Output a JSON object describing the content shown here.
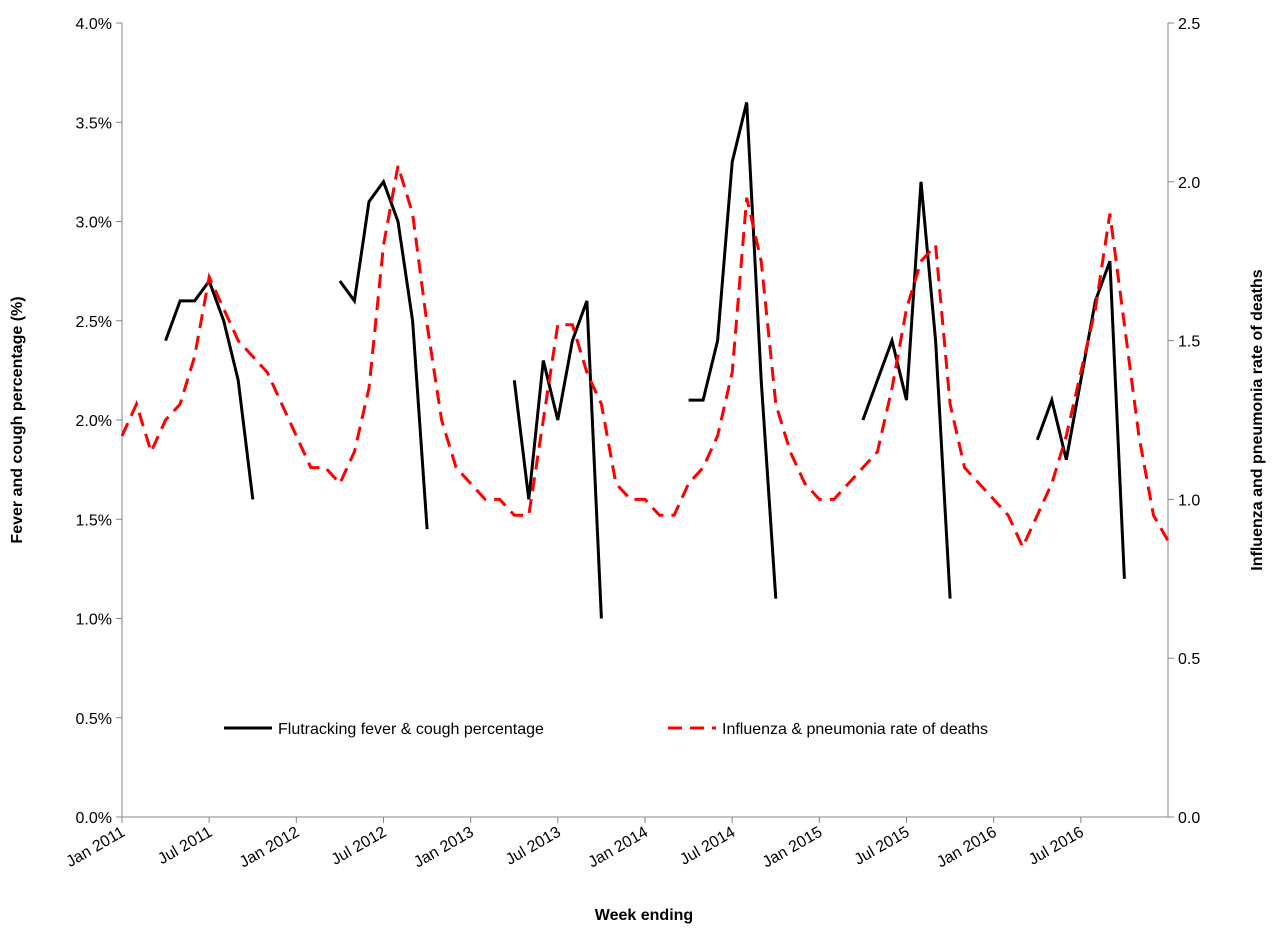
{
  "chart_data": {
    "type": "line",
    "x_label": "Week ending",
    "y_label": "Fever and cough percentage (%)",
    "y2_label": "Influenza and pneumonia rate of deaths",
    "x": [
      "2011-01",
      "2011-02",
      "2011-03",
      "2011-04",
      "2011-05",
      "2011-06",
      "2011-07",
      "2011-08",
      "2011-09",
      "2011-10",
      "2011-11",
      "2011-12",
      "2012-01",
      "2012-02",
      "2012-03",
      "2012-04",
      "2012-05",
      "2012-06",
      "2012-07",
      "2012-08",
      "2012-09",
      "2012-10",
      "2012-11",
      "2012-12",
      "2013-01",
      "2013-02",
      "2013-03",
      "2013-04",
      "2013-05",
      "2013-06",
      "2013-07",
      "2013-08",
      "2013-09",
      "2013-10",
      "2013-11",
      "2013-12",
      "2014-01",
      "2014-02",
      "2014-03",
      "2014-04",
      "2014-05",
      "2014-06",
      "2014-07",
      "2014-08",
      "2014-09",
      "2014-10",
      "2014-11",
      "2014-12",
      "2015-01",
      "2015-02",
      "2015-03",
      "2015-04",
      "2015-05",
      "2015-06",
      "2015-07",
      "2015-08",
      "2015-09",
      "2015-10",
      "2015-11",
      "2015-12",
      "2016-01",
      "2016-02",
      "2016-03",
      "2016-04",
      "2016-05",
      "2016-06",
      "2016-07",
      "2016-08",
      "2016-09",
      "2016-10",
      "2016-11",
      "2016-12",
      "2017-01"
    ],
    "xlim": [
      "2011-01",
      "2017-01"
    ],
    "xticks": [
      {
        "value": "2011-01",
        "label": "Jan 2011"
      },
      {
        "value": "2011-07",
        "label": "Jul 2011"
      },
      {
        "value": "2012-01",
        "label": "Jan 2012"
      },
      {
        "value": "2012-07",
        "label": "Jul 2012"
      },
      {
        "value": "2013-01",
        "label": "Jan 2013"
      },
      {
        "value": "2013-07",
        "label": "Jul 2013"
      },
      {
        "value": "2014-01",
        "label": "Jan 2014"
      },
      {
        "value": "2014-07",
        "label": "Jul 2014"
      },
      {
        "value": "2015-01",
        "label": "Jan 2015"
      },
      {
        "value": "2015-07",
        "label": "Jul 2015"
      },
      {
        "value": "2016-01",
        "label": "Jan 2016"
      },
      {
        "value": "2016-07",
        "label": "Jul 2016"
      }
    ],
    "ylim": [
      0,
      4
    ],
    "yticks": [
      {
        "value": 0,
        "label": "0.0%"
      },
      {
        "value": 0.5,
        "label": "0.5%"
      },
      {
        "value": 1,
        "label": "1.0%"
      },
      {
        "value": 1.5,
        "label": "1.5%"
      },
      {
        "value": 2,
        "label": "2.0%"
      },
      {
        "value": 2.5,
        "label": "2.5%"
      },
      {
        "value": 3,
        "label": "3.0%"
      },
      {
        "value": 3.5,
        "label": "3.5%"
      },
      {
        "value": 4,
        "label": "4.0%"
      }
    ],
    "y2lim": [
      0,
      2.5
    ],
    "y2ticks": [
      {
        "value": 0,
        "label": "0.0"
      },
      0.5,
      {
        "value": 1,
        "label": "1.0"
      },
      1.5,
      {
        "value": 2,
        "label": "2.0"
      },
      2.5
    ],
    "legend": "lower center",
    "series": [
      {
        "name": "Flutracking fever & cough percentage",
        "color": "#000000",
        "dash": false,
        "values": [
          null,
          null,
          null,
          2.4,
          2.6,
          2.6,
          2.7,
          2.5,
          2.2,
          1.6,
          null,
          null,
          null,
          null,
          null,
          2.7,
          2.6,
          3.1,
          3.2,
          3.0,
          2.5,
          1.45,
          null,
          null,
          null,
          null,
          null,
          2.2,
          1.6,
          2.3,
          2.0,
          2.4,
          2.6,
          1.0,
          null,
          null,
          null,
          null,
          null,
          2.1,
          2.1,
          2.4,
          3.3,
          3.6,
          2.2,
          1.1,
          null,
          null,
          null,
          null,
          null,
          2.0,
          2.2,
          2.4,
          2.1,
          3.2,
          2.4,
          1.1,
          null,
          null,
          null,
          null,
          null,
          1.9,
          2.1,
          1.8,
          2.2,
          2.6,
          2.8,
          1.2,
          null,
          null,
          null
        ]
      },
      {
        "name": "Influenza & pneumonia rate of deaths",
        "color": "#ff0000",
        "dash": true,
        "axis": "y2",
        "values": [
          1.2,
          1.3,
          1.15,
          1.25,
          1.3,
          1.45,
          1.7,
          1.6,
          1.5,
          1.45,
          1.4,
          1.3,
          1.2,
          1.1,
          1.1,
          1.05,
          1.15,
          1.35,
          1.8,
          2.05,
          1.9,
          1.55,
          1.25,
          1.1,
          1.05,
          1.0,
          1.0,
          0.95,
          0.95,
          1.25,
          1.55,
          1.55,
          1.4,
          1.3,
          1.05,
          1.0,
          1.0,
          0.95,
          0.95,
          1.05,
          1.1,
          1.2,
          1.4,
          1.95,
          1.75,
          1.3,
          1.15,
          1.05,
          1.0,
          1.0,
          1.05,
          1.1,
          1.15,
          1.35,
          1.6,
          1.75,
          1.8,
          1.3,
          1.1,
          1.05,
          1.0,
          0.95,
          0.85,
          0.95,
          1.05,
          1.2,
          1.4,
          1.6,
          1.9,
          1.55,
          1.2,
          0.95,
          0.87
        ]
      }
    ]
  }
}
